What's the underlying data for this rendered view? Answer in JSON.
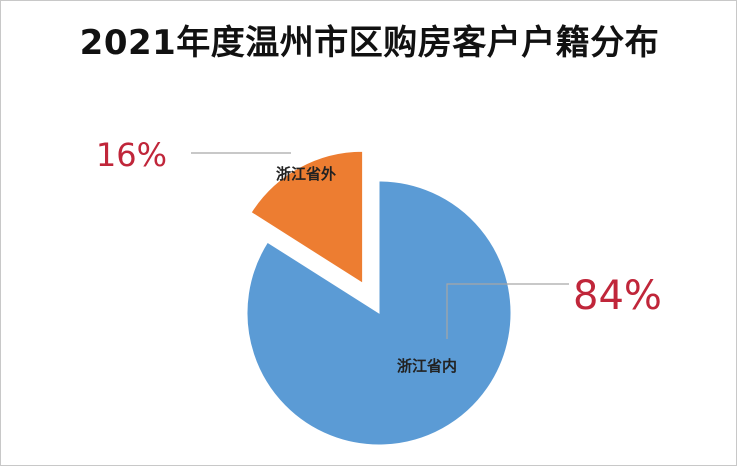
{
  "title": "2021年度温州市区购房客户户籍分布",
  "chart_data": {
    "type": "pie",
    "title": "2021年度温州市区购房客户户籍分布",
    "slices": [
      {
        "label": "浙江省内",
        "value": 84,
        "value_label": "84%",
        "color": "#5b9bd5",
        "exploded": false
      },
      {
        "label": "浙江省外",
        "value": 16,
        "value_label": "16%",
        "color": "#ed7d31",
        "exploded": true
      }
    ],
    "label_color": "#c0263a",
    "legend": "none"
  }
}
